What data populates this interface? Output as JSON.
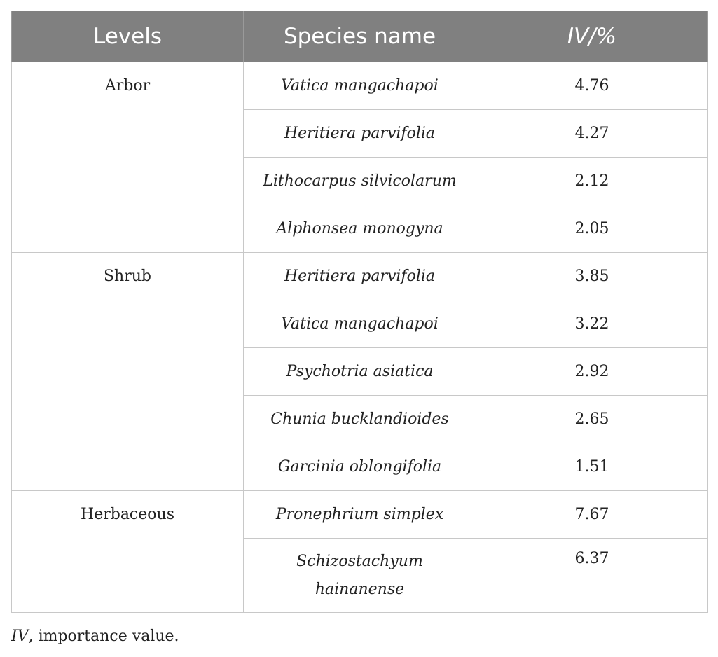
{
  "table": {
    "headers": [
      "Levels",
      "Species name",
      "IV/%"
    ],
    "groups": [
      {
        "level": "Arbor",
        "rows": [
          {
            "species": "Vatica mangachapoi",
            "iv": "4.76"
          },
          {
            "species": "Heritiera parvifolia",
            "iv": "4.27"
          },
          {
            "species": "Lithocarpus silvicolarum",
            "iv": "2.12"
          },
          {
            "species": "Alphonsea monogyna",
            "iv": "2.05"
          }
        ]
      },
      {
        "level": "Shrub",
        "rows": [
          {
            "species": "Heritiera parvifolia",
            "iv": "3.85"
          },
          {
            "species": "Vatica mangachapoi",
            "iv": "3.22"
          },
          {
            "species": "Psychotria asiatica",
            "iv": "2.92"
          },
          {
            "species": "Chunia bucklandioides",
            "iv": "2.65"
          },
          {
            "species": "Garcinia oblongifolia",
            "iv": "1.51"
          }
        ]
      },
      {
        "level": "Herbaceous",
        "rows": [
          {
            "species": "Pronephrium simplex",
            "iv": "7.67"
          },
          {
            "species": "Schizostachyum hainanense",
            "iv": "6.37"
          }
        ]
      }
    ]
  },
  "footnote": {
    "abbr": "IV",
    "text": ", importance value."
  }
}
